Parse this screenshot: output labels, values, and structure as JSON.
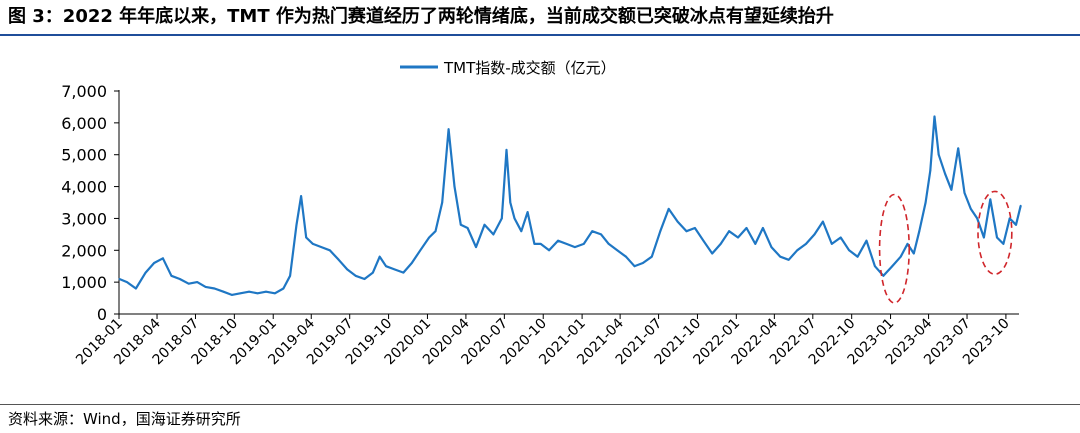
{
  "figure": {
    "title": "图 3：2022 年年底以来，TMT 作为热门赛道经历了两轮情绪底，当前成交额已突破冰点有望延续抬升",
    "source": "资料来源：Wind，国海证券研究所"
  },
  "colors": {
    "line": "#1f77c4",
    "ellipse": "#d0262b",
    "rule": "#1f4e9a"
  },
  "chart_data": {
    "type": "line",
    "title": "",
    "xlabel": "",
    "ylabel": "",
    "ylim": [
      0,
      7000
    ],
    "yticks": [
      0,
      1000,
      2000,
      3000,
      4000,
      5000,
      6000,
      7000
    ],
    "ytick_labels": [
      "0",
      "1,000",
      "2,000",
      "3,000",
      "4,000",
      "5,000",
      "6,000",
      "7,000"
    ],
    "xlim": [
      "2018-01",
      "2023-11"
    ],
    "xtick_labels": [
      "2018-01",
      "2018-04",
      "2018-07",
      "2018-10",
      "2019-01",
      "2019-04",
      "2019-07",
      "2019-10",
      "2020-01",
      "2020-04",
      "2020-07",
      "2020-10",
      "2021-01",
      "2021-04",
      "2021-07",
      "2021-10",
      "2022-01",
      "2022-04",
      "2022-07",
      "2022-10",
      "2023-01",
      "2023-04",
      "2023-07",
      "2023-10"
    ],
    "legend": {
      "position": "top-center"
    },
    "grid": false,
    "series": [
      {
        "name": "TMT指数-成交额（亿元）",
        "x": [
          "2018-01-02",
          "2018-01-20",
          "2018-02-10",
          "2018-03-05",
          "2018-03-25",
          "2018-04-15",
          "2018-05-05",
          "2018-05-25",
          "2018-06-15",
          "2018-07-05",
          "2018-07-25",
          "2018-08-15",
          "2018-09-05",
          "2018-09-25",
          "2018-10-15",
          "2018-11-05",
          "2018-11-25",
          "2018-12-15",
          "2019-01-05",
          "2019-01-25",
          "2019-02-10",
          "2019-02-25",
          "2019-03-08",
          "2019-03-20",
          "2019-04-05",
          "2019-04-25",
          "2019-05-15",
          "2019-06-05",
          "2019-06-25",
          "2019-07-15",
          "2019-08-05",
          "2019-08-25",
          "2019-09-10",
          "2019-09-25",
          "2019-10-15",
          "2019-11-05",
          "2019-11-25",
          "2019-12-15",
          "2020-01-05",
          "2020-01-20",
          "2020-02-05",
          "2020-02-20",
          "2020-03-05",
          "2020-03-20",
          "2020-04-05",
          "2020-04-25",
          "2020-05-15",
          "2020-06-05",
          "2020-06-25",
          "2020-07-06",
          "2020-07-15",
          "2020-07-25",
          "2020-08-10",
          "2020-08-25",
          "2020-09-10",
          "2020-09-25",
          "2020-10-15",
          "2020-11-05",
          "2020-11-25",
          "2020-12-15",
          "2021-01-05",
          "2021-01-25",
          "2021-02-15",
          "2021-03-05",
          "2021-03-25",
          "2021-04-15",
          "2021-05-05",
          "2021-05-25",
          "2021-06-15",
          "2021-07-05",
          "2021-07-25",
          "2021-08-15",
          "2021-09-05",
          "2021-09-25",
          "2021-10-15",
          "2021-11-05",
          "2021-11-25",
          "2021-12-15",
          "2022-01-05",
          "2022-01-25",
          "2022-02-15",
          "2022-03-05",
          "2022-03-25",
          "2022-04-15",
          "2022-05-05",
          "2022-05-25",
          "2022-06-15",
          "2022-07-05",
          "2022-07-25",
          "2022-08-15",
          "2022-09-05",
          "2022-09-25",
          "2022-10-15",
          "2022-11-05",
          "2022-11-25",
          "2022-12-15",
          "2023-01-05",
          "2023-01-25",
          "2023-02-10",
          "2023-02-25",
          "2023-03-10",
          "2023-03-25",
          "2023-04-05",
          "2023-04-15",
          "2023-04-25",
          "2023-05-10",
          "2023-05-25",
          "2023-06-10",
          "2023-06-25",
          "2023-07-10",
          "2023-07-25",
          "2023-08-10",
          "2023-08-25",
          "2023-09-10",
          "2023-09-25",
          "2023-10-10",
          "2023-10-25",
          "2023-11-05"
        ],
        "values": [
          1100,
          1000,
          800,
          1300,
          1600,
          1750,
          1200,
          1100,
          950,
          1000,
          850,
          800,
          700,
          600,
          650,
          700,
          650,
          700,
          650,
          800,
          1200,
          2800,
          3700,
          2400,
          2200,
          2100,
          2000,
          1700,
          1400,
          1200,
          1100,
          1300,
          1800,
          1500,
          1400,
          1300,
          1600,
          2000,
          2400,
          2600,
          3500,
          5800,
          4000,
          2800,
          2700,
          2100,
          2800,
          2500,
          3000,
          5150,
          3500,
          3000,
          2600,
          3200,
          2200,
          2200,
          2000,
          2300,
          2200,
          2100,
          2200,
          2600,
          2500,
          2200,
          2000,
          1800,
          1500,
          1600,
          1800,
          2600,
          3300,
          2900,
          2600,
          2700,
          2300,
          1900,
          2200,
          2600,
          2400,
          2700,
          2200,
          2700,
          2100,
          1800,
          1700,
          2000,
          2200,
          2500,
          2900,
          2200,
          2400,
          2000,
          1800,
          2300,
          1500,
          1200,
          1500,
          1800,
          2200,
          1900,
          2600,
          3500,
          4500,
          6200,
          5000,
          4400,
          3900,
          5200,
          3800,
          3300,
          3000,
          2400,
          3600,
          2400,
          2200,
          3000,
          2800,
          3400
        ]
      }
    ],
    "annotations": [
      {
        "type": "dashed-ellipse",
        "x_center": "2023-01-10",
        "y_center": 2050,
        "x_half_width_days": 35,
        "y_half_height": 1700
      },
      {
        "type": "dashed-ellipse",
        "x_center": "2023-09-05",
        "y_center": 2550,
        "x_half_width_days": 40,
        "y_half_height": 1300
      }
    ]
  }
}
